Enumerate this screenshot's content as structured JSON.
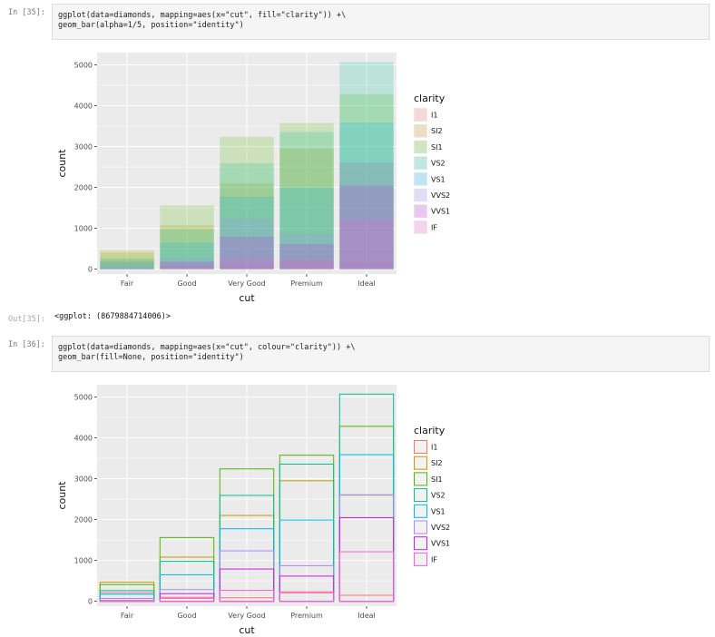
{
  "cells": [
    {
      "prompt": "In [35]:",
      "code_line1": "ggplot(data=diamonds, mapping=aes(x=\"cut\", fill=\"clarity\")) +\\",
      "code_line2": "geom_bar(alpha=1/5, position=\"identity\")"
    },
    {
      "prompt": "In [36]:",
      "code_line1": "ggplot(data=diamonds, mapping=aes(x=\"cut\", colour=\"clarity\")) +\\",
      "code_line2": "geom_bar(fill=None, position=\"identity\")"
    }
  ],
  "out_prompt": "Out[35]:",
  "out_text": "<ggplot: (8679884714006)>",
  "colors": {
    "I1": "#f8766d",
    "SI2": "#c49a00",
    "SI1": "#53b400",
    "VS2": "#00c094",
    "VS1": "#00b6eb",
    "VVS2": "#a58aff",
    "VVS1": "#c71fe0",
    "IF": "#fb61d7"
  },
  "chart_data": [
    {
      "type": "bar",
      "title": "",
      "xlabel": "cut",
      "ylabel": "count",
      "categories": [
        "Fair",
        "Good",
        "Very Good",
        "Premium",
        "Ideal"
      ],
      "ylim": [
        -120,
        5300
      ],
      "yticks": [
        0,
        1000,
        2000,
        3000,
        4000,
        5000
      ],
      "legend_title": "clarity",
      "legend_position": "right",
      "fill": true,
      "alpha": 0.2,
      "series": [
        {
          "name": "I1",
          "values": [
            210,
            96,
            84,
            205,
            146
          ]
        },
        {
          "name": "SI2",
          "values": [
            466,
            1081,
            2100,
            2949,
            2598
          ]
        },
        {
          "name": "SI1",
          "values": [
            408,
            1560,
            3240,
            3575,
            4282
          ]
        },
        {
          "name": "VS2",
          "values": [
            261,
            978,
            2591,
            3357,
            5071
          ]
        },
        {
          "name": "VS1",
          "values": [
            170,
            648,
            1775,
            1989,
            3589
          ]
        },
        {
          "name": "VVS2",
          "values": [
            69,
            286,
            1235,
            870,
            2606
          ]
        },
        {
          "name": "VVS1",
          "values": [
            17,
            186,
            789,
            616,
            2047
          ]
        },
        {
          "name": "IF",
          "values": [
            9,
            71,
            268,
            230,
            1212
          ]
        }
      ]
    },
    {
      "type": "bar",
      "title": "",
      "xlabel": "cut",
      "ylabel": "count",
      "categories": [
        "Fair",
        "Good",
        "Very Good",
        "Premium",
        "Ideal"
      ],
      "ylim": [
        -120,
        5300
      ],
      "yticks": [
        0,
        1000,
        2000,
        3000,
        4000,
        5000
      ],
      "legend_title": "clarity",
      "legend_position": "right",
      "fill": false,
      "alpha": 1,
      "series": [
        {
          "name": "I1",
          "values": [
            210,
            96,
            84,
            205,
            146
          ]
        },
        {
          "name": "SI2",
          "values": [
            466,
            1081,
            2100,
            2949,
            2598
          ]
        },
        {
          "name": "SI1",
          "values": [
            408,
            1560,
            3240,
            3575,
            4282
          ]
        },
        {
          "name": "VS2",
          "values": [
            261,
            978,
            2591,
            3357,
            5071
          ]
        },
        {
          "name": "VS1",
          "values": [
            170,
            648,
            1775,
            1989,
            3589
          ]
        },
        {
          "name": "VVS2",
          "values": [
            69,
            286,
            1235,
            870,
            2606
          ]
        },
        {
          "name": "VVS1",
          "values": [
            17,
            186,
            789,
            616,
            2047
          ]
        },
        {
          "name": "IF",
          "values": [
            9,
            71,
            268,
            230,
            1212
          ]
        }
      ]
    }
  ]
}
